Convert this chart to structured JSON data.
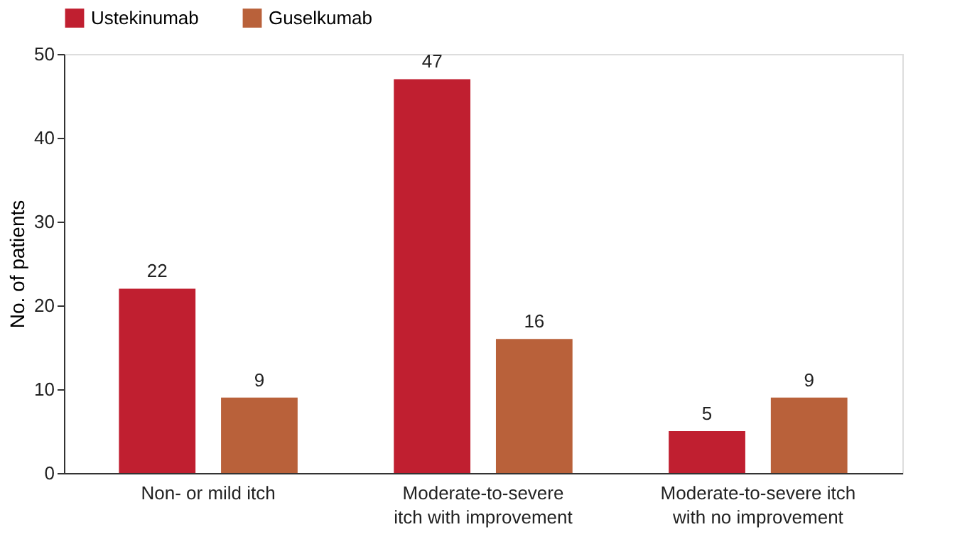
{
  "chart_data": {
    "type": "bar",
    "ylabel": "No. of patients",
    "categories": [
      "Non- or mild itch",
      "Moderate-to-severe itch with improvement",
      "Moderate-to-severe itch with no improvement"
    ],
    "series": [
      {
        "name": "Ustekinumab",
        "color": "#c01f30",
        "values": [
          22,
          47,
          5
        ]
      },
      {
        "name": "Guselkumab",
        "color": "#b9613a",
        "values": [
          9,
          16,
          9
        ]
      }
    ],
    "ylim": [
      0,
      50
    ],
    "yticks": [
      0,
      10,
      20,
      30,
      40,
      50
    ],
    "grid": false,
    "legend": "top",
    "data_labels": true
  }
}
